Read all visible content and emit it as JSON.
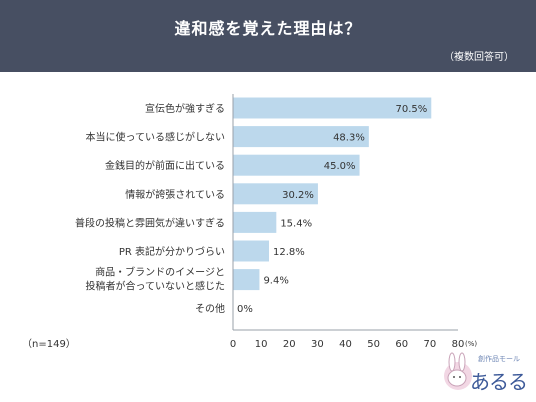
{
  "header": {
    "title": "違和感を覚えた理由は？",
    "note": "（複数回答可）"
  },
  "sample_note": "（n=149）",
  "logo": {
    "sub_text": "創作品モール",
    "main_text": "あるる"
  },
  "colors": {
    "header_bg": "#474f62",
    "bar": "#bcd8ec",
    "axis": "#9aa0aa",
    "text": "#333333"
  },
  "chart_data": {
    "type": "bar",
    "orientation": "horizontal",
    "title": "違和感を覚えた理由は？",
    "categories": [
      [
        "宣伝色が強すぎる"
      ],
      [
        "本当に使っている感じがしない"
      ],
      [
        "金銭目的が前面に出ている"
      ],
      [
        "情報が誇張されている"
      ],
      [
        "普段の投稿と雰囲気が違いすぎる"
      ],
      [
        "PR 表記が分かりづらい"
      ],
      [
        "商品・ブランドのイメージと",
        "投稿者が合っていないと感じた"
      ],
      [
        "その他"
      ]
    ],
    "values": [
      70.5,
      48.3,
      45.0,
      30.2,
      15.4,
      12.8,
      9.4,
      0
    ],
    "value_labels": [
      "70.5%",
      "48.3%",
      "45.0%",
      "30.2%",
      "15.4%",
      "12.8%",
      "9.4%",
      "0%"
    ],
    "xlim": [
      0,
      80
    ],
    "xticks": [
      0,
      10,
      20,
      30,
      40,
      50,
      60,
      70,
      80
    ],
    "xtick_labels": [
      "0",
      "10",
      "20",
      "30",
      "40",
      "50",
      "60",
      "70",
      "80"
    ],
    "x_unit_label": "(%)",
    "grid": false
  }
}
